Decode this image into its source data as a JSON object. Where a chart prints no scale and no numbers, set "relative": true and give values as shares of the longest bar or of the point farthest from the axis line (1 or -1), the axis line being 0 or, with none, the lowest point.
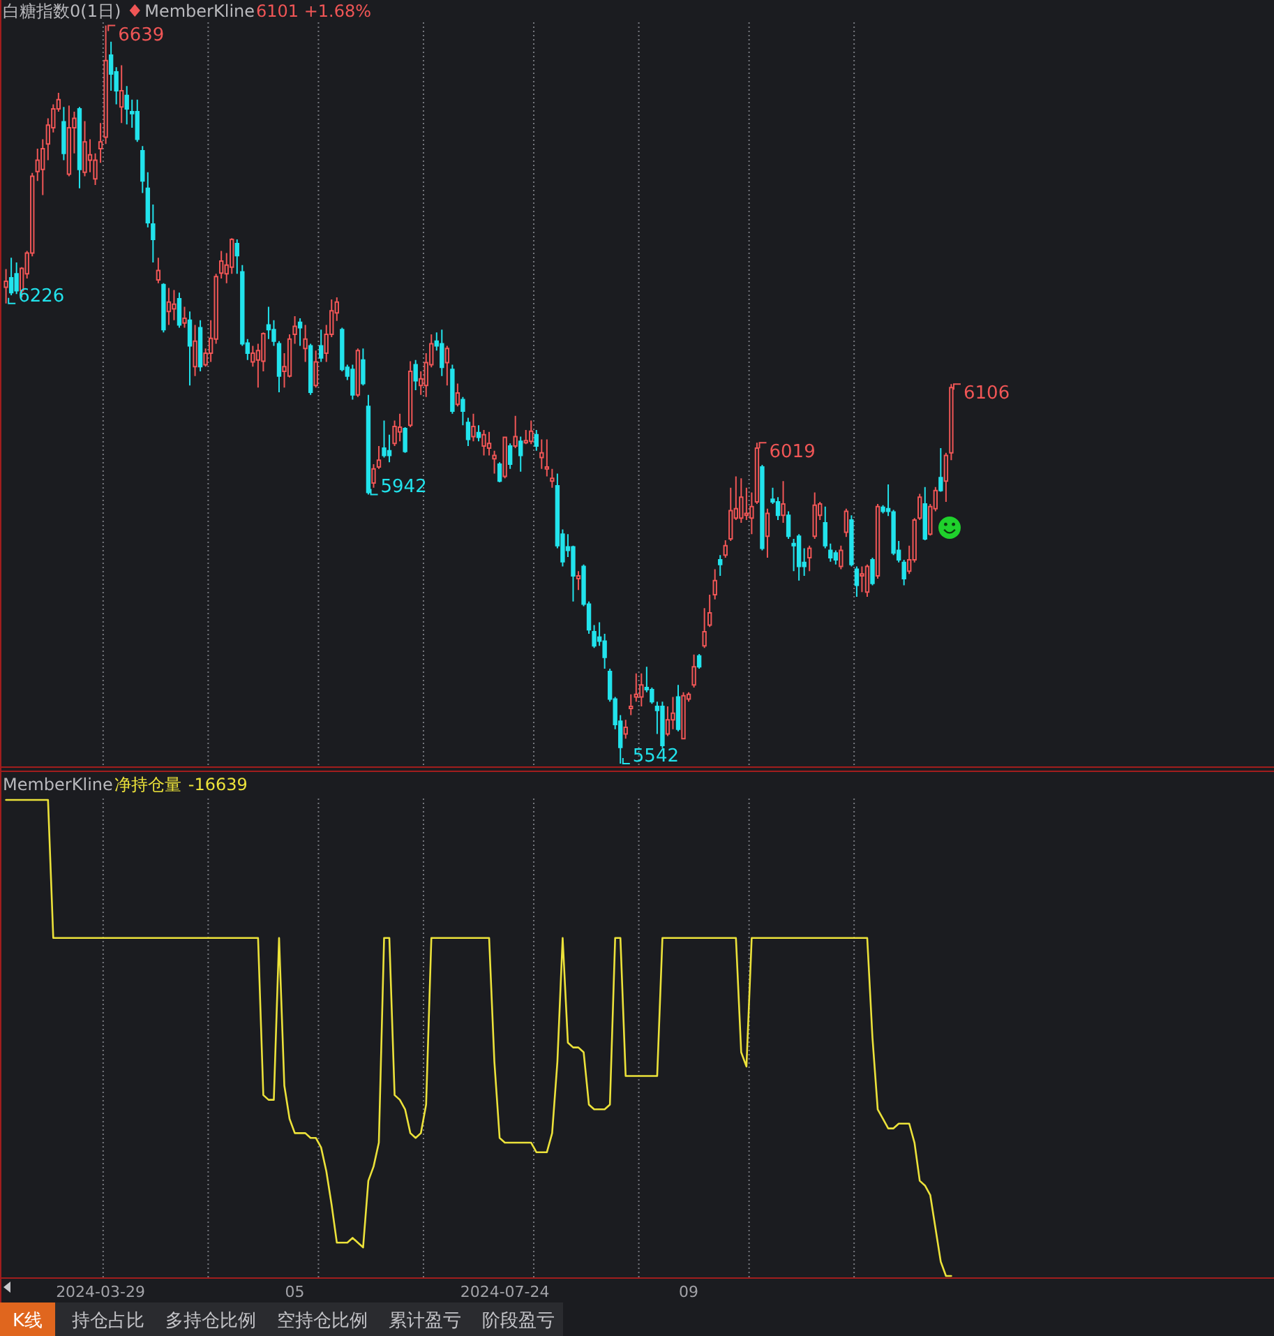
{
  "chart_data": [
    {
      "type": "candlestick",
      "title": "白糖指数0(1日)",
      "subtitle": "MemberKline",
      "annotations": [
        "6101 +1.68%",
        "6639",
        "6226",
        "5942",
        "6019",
        "5542",
        "6106"
      ],
      "grid": "x",
      "tick_labels": false,
      "categories": [
        null,
        null,
        null,
        null,
        null,
        null,
        null,
        null,
        null,
        null,
        null,
        null,
        null,
        null,
        null,
        null,
        null,
        null,
        "2024-03-29",
        null,
        null,
        null,
        null,
        null,
        null,
        null,
        null,
        null,
        null,
        null,
        null,
        null,
        null,
        null,
        null,
        null,
        null,
        null,
        null,
        null,
        null,
        null,
        null,
        null,
        null,
        null,
        null,
        null,
        null,
        null,
        null,
        null,
        null,
        null,
        null,
        "05",
        null,
        null,
        null,
        null,
        null,
        null,
        null,
        null,
        null,
        null,
        null,
        null,
        null,
        null,
        null,
        null,
        null,
        null,
        null,
        null,
        null,
        null,
        null,
        null,
        null,
        null,
        null,
        null,
        null,
        null,
        null,
        null,
        null,
        null,
        null,
        null,
        null,
        null,
        null,
        "2024-07-24",
        null,
        null,
        null,
        null,
        null,
        null,
        null,
        null,
        null,
        null,
        null,
        null,
        null,
        null,
        null,
        null,
        null,
        null,
        null,
        null,
        null,
        null,
        null,
        null,
        null,
        null,
        null,
        null,
        null,
        null,
        null,
        null,
        null,
        null,
        "09",
        null,
        null,
        null,
        null,
        null,
        null,
        null,
        null,
        null,
        null,
        null,
        null,
        null,
        null,
        null,
        null,
        null,
        null,
        null,
        null,
        null,
        null,
        null,
        null,
        null,
        null,
        null,
        null,
        null,
        null,
        null,
        null,
        null,
        null,
        null,
        null,
        null,
        null,
        null,
        null,
        null,
        null,
        null,
        null,
        null,
        null,
        null,
        null,
        null,
        null
      ],
      "ohlc": [
        [
          6250,
          6277,
          6226,
          6259
        ],
        [
          6264,
          6294,
          6238,
          6242
        ],
        [
          6270,
          6287,
          6240,
          6245
        ],
        [
          6245,
          6280,
          6235,
          6278
        ],
        [
          6270,
          6304,
          6263,
          6301
        ],
        [
          6301,
          6420,
          6296,
          6415
        ],
        [
          6422,
          6456,
          6408,
          6439
        ],
        [
          6425,
          6470,
          6387,
          6456
        ],
        [
          6463,
          6501,
          6439,
          6491
        ],
        [
          6487,
          6522,
          6480,
          6515
        ],
        [
          6515,
          6539,
          6511,
          6529
        ],
        [
          6496,
          6518,
          6439,
          6449
        ],
        [
          6418,
          6520,
          6415,
          6487
        ],
        [
          6487,
          6511,
          6449,
          6501
        ],
        [
          6515,
          6518,
          6397,
          6425
        ],
        [
          6421,
          6497,
          6415,
          6466
        ],
        [
          6439,
          6470,
          6421,
          6447
        ],
        [
          6411,
          6449,
          6402,
          6439
        ],
        [
          6456,
          6494,
          6435,
          6466
        ],
        [
          6473,
          6639,
          6463,
          6587
        ],
        [
          6595,
          6615,
          6542,
          6567
        ],
        [
          6570,
          6577,
          6522,
          6542
        ],
        [
          6518,
          6580,
          6494,
          6542
        ],
        [
          6535,
          6549,
          6492,
          6515
        ],
        [
          6511,
          6529,
          6487,
          6508
        ],
        [
          6511,
          6529,
          6466,
          6470
        ],
        [
          6453,
          6460,
          6390,
          6408
        ],
        [
          6397,
          6421,
          6339,
          6346
        ],
        [
          6344,
          6373,
          6287,
          6321
        ],
        [
          6261,
          6294,
          6256,
          6275
        ],
        [
          6254,
          6256,
          6183,
          6187
        ],
        [
          6214,
          6249,
          6194,
          6228
        ],
        [
          6218,
          6246,
          6201,
          6225
        ],
        [
          6233,
          6242,
          6190,
          6194
        ],
        [
          6197,
          6221,
          6190,
          6204
        ],
        [
          6201,
          6214,
          6104,
          6163
        ],
        [
          6132,
          6194,
          6118,
          6170
        ],
        [
          6190,
          6201,
          6125,
          6132
        ],
        [
          6135,
          6159,
          6132,
          6152
        ],
        [
          6152,
          6201,
          6139,
          6174
        ],
        [
          6173,
          6270,
          6166,
          6266
        ],
        [
          6271,
          6304,
          6263,
          6289
        ],
        [
          6270,
          6301,
          6256,
          6283
        ],
        [
          6280,
          6323,
          6270,
          6321
        ],
        [
          6315,
          6321,
          6270,
          6297
        ],
        [
          6273,
          6283,
          6163,
          6166
        ],
        [
          6167,
          6173,
          6142,
          6152
        ],
        [
          6139,
          6163,
          6132,
          6152
        ],
        [
          6142,
          6166,
          6101,
          6156
        ],
        [
          6140,
          6183,
          6125,
          6181
        ],
        [
          6194,
          6221,
          6173,
          6187
        ],
        [
          6187,
          6201,
          6163,
          6170
        ],
        [
          6166,
          6170,
          6094,
          6118
        ],
        [
          6125,
          6152,
          6101,
          6132
        ],
        [
          6118,
          6180,
          6116,
          6173
        ],
        [
          6180,
          6207,
          6166,
          6192
        ],
        [
          6198,
          6204,
          6163,
          6190
        ],
        [
          6159,
          6194,
          6139,
          6173
        ],
        [
          6163,
          6166,
          6090,
          6094
        ],
        [
          6104,
          6156,
          6101,
          6139
        ],
        [
          6163,
          6187,
          6139,
          6145
        ],
        [
          6152,
          6194,
          6139,
          6180
        ],
        [
          6180,
          6232,
          6176,
          6215
        ],
        [
          6212,
          6235,
          6200,
          6228
        ],
        [
          6187,
          6190,
          6125,
          6128
        ],
        [
          6131,
          6135,
          6112,
          6118
        ],
        [
          6128,
          6135,
          6083,
          6090
        ],
        [
          6090,
          6159,
          6087,
          6156
        ],
        [
          6142,
          6159,
          6104,
          6107
        ],
        [
          6073,
          6090,
          5942,
          5945
        ],
        [
          5959,
          5987,
          5952,
          5980
        ],
        [
          5983,
          6014,
          5980,
          5993
        ],
        [
          6011,
          6052,
          5997,
          6000
        ],
        [
          6007,
          6031,
          5990,
          6000
        ],
        [
          6018,
          6052,
          6014,
          6043
        ],
        [
          6035,
          6062,
          6021,
          6042
        ],
        [
          6040,
          6042,
          6004,
          6006
        ],
        [
          6045,
          6140,
          6042,
          6125
        ],
        [
          6135,
          6142,
          6097,
          6111
        ],
        [
          6104,
          6125,
          6090,
          6114
        ],
        [
          6104,
          6152,
          6087,
          6138
        ],
        [
          6135,
          6180,
          6131,
          6166
        ],
        [
          6170,
          6183,
          6156,
          6163
        ],
        [
          6166,
          6187,
          6118,
          6131
        ],
        [
          6138,
          6163,
          6104,
          6159
        ],
        [
          6128,
          6135,
          6062,
          6066
        ],
        [
          6076,
          6107,
          6073,
          6093
        ],
        [
          6083,
          6087,
          6045,
          6066
        ],
        [
          6049,
          6056,
          6014,
          6024
        ],
        [
          6028,
          6062,
          6021,
          6043
        ],
        [
          6034,
          6045,
          6021,
          6027
        ],
        [
          6014,
          6038,
          6000,
          6031
        ],
        [
          6011,
          6035,
          6000,
          6018
        ],
        [
          5995,
          6007,
          5973,
          6000
        ],
        [
          5987,
          5990,
          5960,
          5962
        ],
        [
          5969,
          6028,
          5966,
          6027
        ],
        [
          6014,
          6018,
          5980,
          5987
        ],
        [
          6014,
          6059,
          6011,
          6028
        ],
        [
          6021,
          6028,
          5976,
          6000
        ],
        [
          6019,
          6038,
          6017,
          6022
        ],
        [
          6021,
          6052,
          6017,
          6036
        ],
        [
          6031,
          6038,
          6007,
          6014
        ],
        [
          5997,
          6024,
          5980,
          6004
        ],
        [
          5980,
          6024,
          5969,
          5983
        ],
        [
          5962,
          5980,
          5952,
          5966
        ],
        [
          5955,
          5973,
          5862,
          5866
        ],
        [
          5883,
          5890,
          5835,
          5842
        ],
        [
          5864,
          5883,
          5849,
          5859
        ],
        [
          5864,
          5866,
          5783,
          5821
        ],
        [
          5817,
          5828,
          5800,
          5821
        ],
        [
          5835,
          5838,
          5776,
          5779
        ],
        [
          5779,
          5783,
          5735,
          5741
        ],
        [
          5738,
          5748,
          5714,
          5717
        ],
        [
          5730,
          5752,
          5717,
          5724
        ],
        [
          5724,
          5735,
          5683,
          5700
        ],
        [
          5679,
          5683,
          5634,
          5638
        ],
        [
          5638,
          5641,
          5593,
          5600
        ],
        [
          5605,
          5614,
          5542,
          5566
        ],
        [
          5586,
          5607,
          5579,
          5596
        ],
        [
          5624,
          5645,
          5614,
          5627
        ],
        [
          5641,
          5676,
          5634,
          5645
        ],
        [
          5641,
          5676,
          5627,
          5659
        ],
        [
          5655,
          5686,
          5648,
          5652
        ],
        [
          5652,
          5655,
          5631,
          5634
        ],
        [
          5627,
          5634,
          5586,
          5621
        ],
        [
          5627,
          5634,
          5565,
          5569
        ],
        [
          5586,
          5627,
          5583,
          5607
        ],
        [
          5607,
          5641,
          5593,
          5617
        ],
        [
          5641,
          5659,
          5590,
          5593
        ],
        [
          5579,
          5648,
          5578,
          5643
        ],
        [
          5638,
          5648,
          5634,
          5645
        ],
        [
          5659,
          5704,
          5655,
          5686
        ],
        [
          5702,
          5705,
          5683,
          5686
        ],
        [
          5717,
          5773,
          5714,
          5738
        ],
        [
          5748,
          5793,
          5745,
          5766
        ],
        [
          5793,
          5831,
          5786,
          5814
        ],
        [
          5845,
          5852,
          5821,
          5838
        ],
        [
          5852,
          5874,
          5848,
          5866
        ],
        [
          5876,
          5952,
          5873,
          5918
        ],
        [
          5907,
          5969,
          5904,
          5921
        ],
        [
          5907,
          5966,
          5900,
          5938
        ],
        [
          5911,
          5952,
          5904,
          5914
        ],
        [
          5907,
          5945,
          5883,
          5924
        ],
        [
          5931,
          6019,
          5928,
          6011
        ],
        [
          5983,
          5986,
          5859,
          5862
        ],
        [
          5880,
          5921,
          5848,
          5914
        ],
        [
          5935,
          5952,
          5928,
          5931
        ],
        [
          5931,
          5938,
          5904,
          5911
        ],
        [
          5911,
          5962,
          5900,
          5928
        ],
        [
          5911,
          5917,
          5876,
          5880
        ],
        [
          5869,
          5876,
          5828,
          5866
        ],
        [
          5880,
          5883,
          5814,
          5835
        ],
        [
          5841,
          5862,
          5821,
          5835
        ],
        [
          5848,
          5866,
          5828,
          5862
        ],
        [
          5880,
          5945,
          5876,
          5926
        ],
        [
          5911,
          5931,
          5904,
          5928
        ],
        [
          5900,
          5924,
          5862,
          5866
        ],
        [
          5859,
          5869,
          5842,
          5848
        ],
        [
          5855,
          5859,
          5838,
          5845
        ],
        [
          5835,
          5866,
          5831,
          5859
        ],
        [
          5886,
          5921,
          5879,
          5917
        ],
        [
          5904,
          5911,
          5835,
          5838
        ],
        [
          5831,
          5835,
          5790,
          5807
        ],
        [
          5821,
          5835,
          5797,
          5824
        ],
        [
          5797,
          5838,
          5790,
          5835
        ],
        [
          5845,
          5848,
          5807,
          5810
        ],
        [
          5821,
          5928,
          5817,
          5924
        ],
        [
          5923,
          5926,
          5914,
          5917
        ],
        [
          5921,
          5957,
          5910,
          5917
        ],
        [
          5916,
          5919,
          5852,
          5855
        ],
        [
          5859,
          5873,
          5841,
          5845
        ],
        [
          5841,
          5845,
          5807,
          5817
        ],
        [
          5828,
          5866,
          5824,
          5845
        ],
        [
          5845,
          5907,
          5841,
          5904
        ],
        [
          5907,
          5943,
          5904,
          5938
        ],
        [
          5928,
          5953,
          5874,
          5876
        ],
        [
          5883,
          5928,
          5881,
          5924
        ],
        [
          5921,
          5953,
          5917,
          5948
        ],
        [
          5967,
          6011,
          5946,
          5948
        ],
        [
          5962,
          6004,
          5931,
          6000
        ],
        [
          6004,
          6106,
          5993,
          6101
        ]
      ]
    },
    {
      "type": "line",
      "title": "MemberKline",
      "legend": "top left",
      "relative": true,
      "grid": "x",
      "tick_labels": "x",
      "annotations": [
        "-16639"
      ],
      "categories": [
        null,
        null,
        null,
        null,
        null,
        null,
        null,
        null,
        null,
        null,
        null,
        null,
        null,
        null,
        null,
        null,
        null,
        null,
        "2024-03-29",
        null,
        null,
        null,
        null,
        null,
        null,
        null,
        null,
        null,
        null,
        null,
        null,
        null,
        null,
        null,
        null,
        null,
        null,
        null,
        null,
        null,
        null,
        null,
        null,
        null,
        null,
        null,
        null,
        null,
        null,
        null,
        null,
        null,
        null,
        null,
        null,
        "05",
        null,
        null,
        null,
        null,
        null,
        null,
        null,
        null,
        null,
        null,
        null,
        null,
        null,
        null,
        null,
        null,
        null,
        null,
        null,
        null,
        null,
        null,
        null,
        null,
        null,
        null,
        null,
        null,
        null,
        null,
        null,
        null,
        null,
        null,
        null,
        null,
        null,
        null,
        null,
        "2024-07-24",
        null,
        null,
        null,
        null,
        null,
        null,
        null,
        null,
        null,
        null,
        null,
        null,
        null,
        null,
        null,
        null,
        null,
        null,
        null,
        null,
        null,
        null,
        null,
        null,
        null,
        null,
        null,
        null,
        null,
        null,
        null,
        null,
        null,
        null,
        "09",
        null,
        null,
        null,
        null,
        null,
        null,
        null,
        null,
        null,
        null,
        null,
        null,
        null,
        null,
        null,
        null,
        null,
        null,
        null,
        null,
        null,
        null,
        null,
        null,
        null,
        null,
        null,
        null,
        null,
        null,
        null,
        null,
        null,
        null,
        null,
        null,
        null,
        null,
        null,
        null,
        null,
        null,
        null,
        null,
        null,
        null,
        null,
        null,
        null,
        null
      ],
      "series": [
        {
          "name": "净持仓量",
          "color": "#ece23a",
          "values": [
            1,
            1,
            1,
            1,
            1,
            1,
            1,
            1,
            1,
            0.71,
            0.71,
            0.71,
            0.71,
            0.71,
            0.71,
            0.71,
            0.71,
            0.71,
            0.71,
            0.71,
            0.71,
            0.71,
            0.71,
            0.71,
            0.71,
            0.71,
            0.71,
            0.71,
            0.71,
            0.71,
            0.71,
            0.71,
            0.71,
            0.71,
            0.71,
            0.71,
            0.71,
            0.71,
            0.71,
            0.71,
            0.71,
            0.71,
            0.71,
            0.71,
            0.71,
            0.71,
            0.71,
            0.71,
            0.71,
            0.38,
            0.37,
            0.37,
            0.71,
            0.4,
            0.33,
            0.3,
            0.3,
            0.3,
            0.29,
            0.29,
            0.27,
            0.22,
            0.15,
            0.07,
            0.07,
            0.07,
            0.08,
            0.07,
            0.06,
            0.2,
            0.23,
            0.28,
            0.71,
            0.71,
            0.38,
            0.37,
            0.35,
            0.3,
            0.29,
            0.3,
            0.36,
            0.71,
            0.71,
            0.71,
            0.71,
            0.71,
            0.71,
            0.71,
            0.71,
            0.71,
            0.71,
            0.71,
            0.71,
            0.45,
            0.29,
            0.28,
            0.28,
            0.28,
            0.28,
            0.28,
            0.28,
            0.26,
            0.26,
            0.26,
            0.3,
            0.45,
            0.71,
            0.49,
            0.48,
            0.48,
            0.47,
            0.36,
            0.35,
            0.35,
            0.35,
            0.36,
            0.71,
            0.71,
            0.42,
            0.42,
            0.42,
            0.42,
            0.42,
            0.42,
            0.42,
            0.71,
            0.71,
            0.71,
            0.71,
            0.71,
            0.71,
            0.71,
            0.71,
            0.71,
            0.71,
            0.71,
            0.71,
            0.71,
            0.71,
            0.71,
            0.47,
            0.44,
            0.71,
            0.71,
            0.71,
            0.71,
            0.71,
            0.71,
            0.71,
            0.71,
            0.71,
            0.71,
            0.71,
            0.71,
            0.71,
            0.71,
            0.71,
            0.71,
            0.71,
            0.71,
            0.71,
            0.71,
            0.71,
            0.71,
            0.71,
            0.5,
            0.35,
            0.33,
            0.31,
            0.31,
            0.32,
            0.32,
            0.32,
            0.28,
            0.2,
            0.19,
            0.17,
            0.1,
            0.03,
            0,
            0
          ]
        }
      ]
    },
    {
      "type": "other",
      "annotations": [
        "K线",
        "持仓占比",
        "多持仓比例",
        "空持仓比例",
        "累计盈亏",
        "阶段盈亏"
      ]
    }
  ]
}
